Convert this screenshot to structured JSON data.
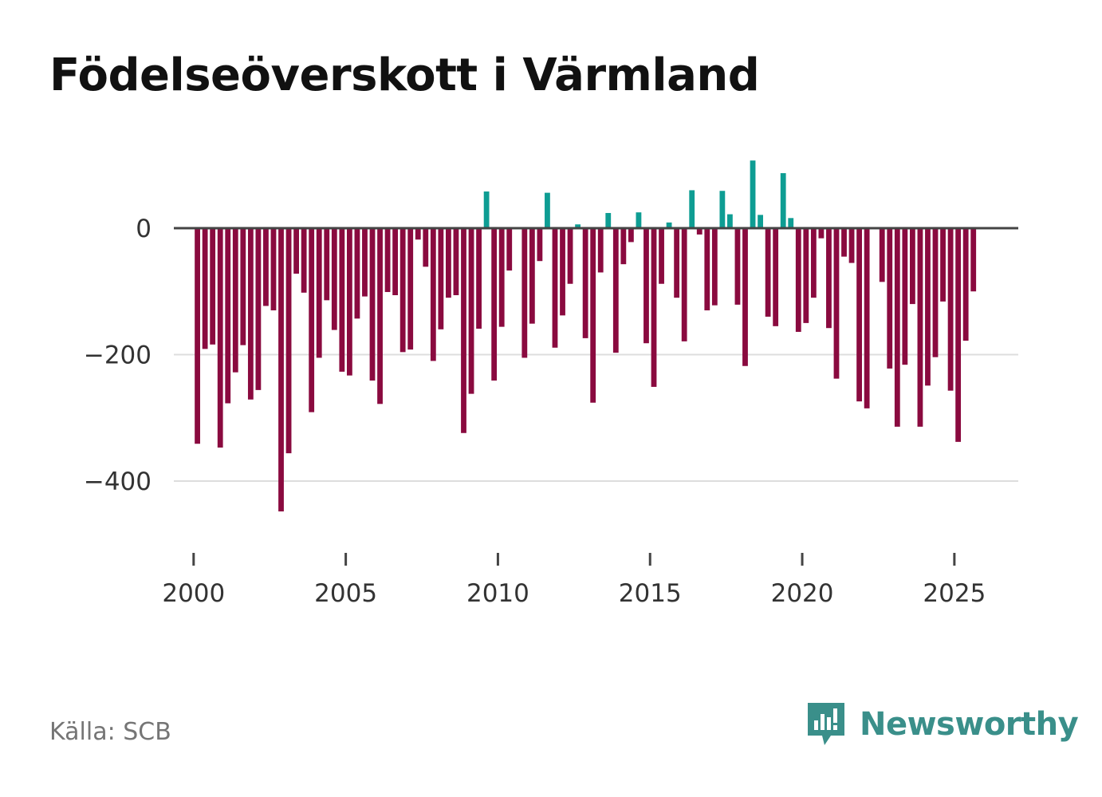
{
  "title": "Födelseöverskott i Värmland",
  "source": "Källa: SCB",
  "brand": {
    "name": "Newsworthy",
    "icon": "newsworthy-logo-icon",
    "color": "#3a8f8a"
  },
  "colors": {
    "positive": "#0e9d93",
    "negative": "#8a0a3f",
    "zero_line": "#444444",
    "grid": "#dddddd",
    "tick_text": "#333333"
  },
  "chart_data": {
    "type": "bar",
    "title": "Födelseöverskott i Värmland",
    "xlabel": "",
    "ylabel": "",
    "ylim": [
      -500,
      125
    ],
    "xlim": [
      1999.35,
      2027.1
    ],
    "yticks": [
      0,
      -200,
      -400
    ],
    "ytick_labels": [
      "0",
      "−200",
      "−400"
    ],
    "xticks": [
      2000,
      2005,
      2010,
      2015,
      2020,
      2025
    ],
    "xtick_labels": [
      "2000",
      "2005",
      "2010",
      "2015",
      "2020",
      "2025"
    ],
    "grid": true,
    "start": {
      "year": 2000,
      "quarter": 1
    },
    "frequency": "quarterly",
    "values": [
      -341,
      -191,
      -184,
      -347,
      -277,
      -228,
      -185,
      -271,
      -256,
      -123,
      -130,
      -448,
      -356,
      -72,
      -102,
      -291,
      -205,
      -114,
      -161,
      -227,
      -233,
      -143,
      -108,
      -241,
      -278,
      -101,
      -106,
      -196,
      -192,
      -18,
      -61,
      -210,
      -160,
      -110,
      -106,
      -324,
      -262,
      -159,
      58,
      -241,
      -156,
      -67,
      0,
      -205,
      -151,
      -52,
      56,
      -189,
      -138,
      -88,
      6,
      -174,
      -276,
      -70,
      24,
      -197,
      -57,
      -22,
      25,
      -182,
      -251,
      -88,
      9,
      -110,
      -179,
      60,
      -10,
      -130,
      -122,
      59,
      22,
      -121,
      -218,
      107,
      21,
      -140,
      -155,
      87,
      16,
      -164,
      -150,
      -110,
      -16,
      -158,
      -238,
      -45,
      -55,
      -274,
      -285,
      0,
      -85,
      -222,
      -314,
      -216,
      -120,
      -314,
      -249,
      -204,
      -116,
      -257,
      -338,
      -178,
      -100
    ]
  }
}
